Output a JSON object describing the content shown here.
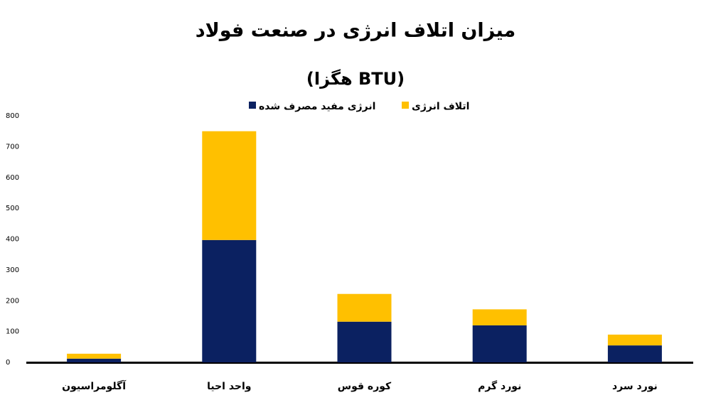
{
  "chart_data": {
    "type": "stacked-bar",
    "title": "میزان اتلاف انرژی در صنعت فولاد",
    "subtitle": "(هگزا BTU)",
    "categories": [
      "آگلومراسیون",
      "واحد احیا",
      "کوره قوس",
      "نورد گرم",
      "نورد سرد"
    ],
    "series": [
      {
        "name": "انرژی مفید مصرف شده",
        "color": "#0b2161",
        "values": [
          12,
          397,
          132,
          120,
          55
        ]
      },
      {
        "name": "اتلاف انرژی",
        "color": "#ffc000",
        "values": [
          16,
          353,
          90,
          52,
          35
        ]
      }
    ],
    "ylim": [
      0,
      800
    ],
    "yticks": [
      0,
      100,
      200,
      300,
      400,
      500,
      600,
      700,
      800
    ],
    "grid": false
  }
}
